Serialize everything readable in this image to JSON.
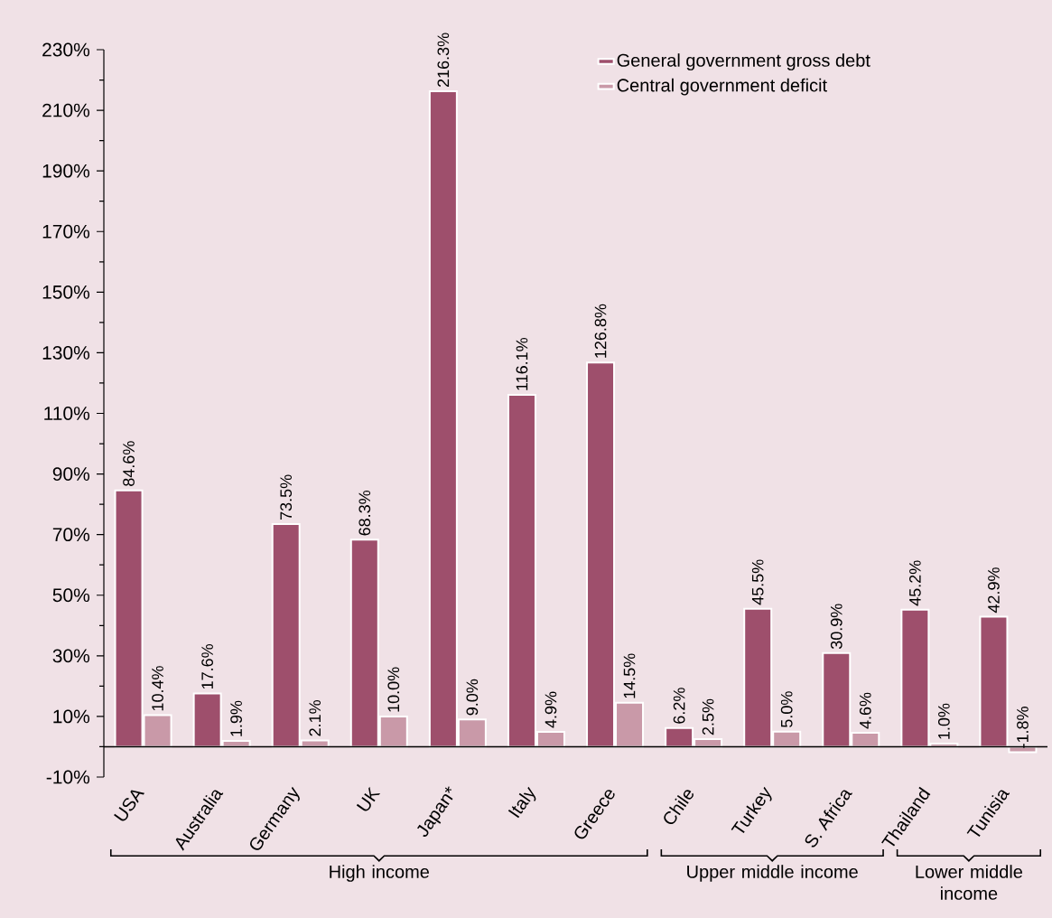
{
  "chart_data": {
    "type": "bar",
    "categories": [
      "USA",
      "Australia",
      "Germany",
      "UK",
      "Japan*",
      "Italy",
      "Greece",
      "Chile",
      "Turkey",
      "S. Africa",
      "Thailand",
      "Tunisia"
    ],
    "series": [
      {
        "name": "General government gross debt",
        "color": "#9e4f6c",
        "values": [
          84.6,
          17.6,
          73.5,
          68.3,
          216.3,
          116.1,
          126.8,
          6.2,
          45.5,
          30.9,
          45.2,
          42.9
        ],
        "value_labels": [
          "84.6%",
          "17.6%",
          "73.5%",
          "68.3%",
          "216.3%",
          "116.1%",
          "126.8%",
          "6.2%",
          "45.5%",
          "30.9%",
          "45.2%",
          "42.9%"
        ]
      },
      {
        "name": "Central government deficit",
        "color": "#c999a8",
        "values": [
          10.4,
          1.9,
          2.1,
          10.0,
          9.0,
          4.9,
          14.5,
          2.5,
          5.0,
          4.6,
          1.0,
          -1.8
        ],
        "value_labels": [
          "10.4%",
          "1.9%",
          "2.1%",
          "10.0%",
          "9.0%",
          "4.9%",
          "14.5%",
          "2.5%",
          "5.0%",
          "4.6%",
          "1.0%",
          "-1.8%"
        ]
      }
    ],
    "ylim": [
      -10,
      230
    ],
    "yticks": [
      {
        "value": -10,
        "label": "-10%"
      },
      {
        "value": 10,
        "label": "10%"
      },
      {
        "value": 30,
        "label": "30%"
      },
      {
        "value": 50,
        "label": "50%"
      },
      {
        "value": 70,
        "label": "70%"
      },
      {
        "value": 90,
        "label": "90%"
      },
      {
        "value": 110,
        "label": "110%"
      },
      {
        "value": 130,
        "label": "130%"
      },
      {
        "value": 150,
        "label": "150%"
      },
      {
        "value": 170,
        "label": "170%"
      },
      {
        "value": 190,
        "label": "190%"
      },
      {
        "value": 210,
        "label": "210%"
      },
      {
        "value": 230,
        "label": "230%"
      }
    ],
    "legend": "top right",
    "annotations": [
      "High income",
      "Upper middle income",
      "Lower middle income"
    ]
  }
}
